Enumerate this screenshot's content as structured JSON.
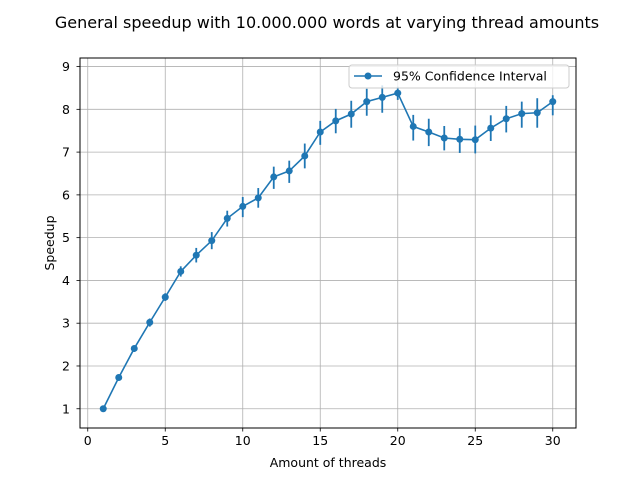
{
  "chart_data": {
    "type": "line",
    "title": "General speedup with 10.000.000 words at varying thread amounts",
    "xlabel": "Amount of threads",
    "ylabel": "Speedup",
    "xlim": [
      -0.5,
      31.5
    ],
    "ylim": [
      0.55,
      9.2
    ],
    "xticks": [
      0,
      5,
      10,
      15,
      20,
      25,
      30
    ],
    "yticks": [
      1,
      2,
      3,
      4,
      5,
      6,
      7,
      8,
      9
    ],
    "grid": true,
    "legend_position": "top-right",
    "series": [
      {
        "name": "95% Confidence Interval",
        "color": "#1f77b4",
        "x": [
          1,
          2,
          3,
          4,
          5,
          6,
          7,
          8,
          9,
          10,
          11,
          12,
          13,
          14,
          15,
          16,
          17,
          18,
          19,
          20,
          21,
          22,
          23,
          24,
          25,
          26,
          27,
          28,
          29,
          30
        ],
        "y": [
          1.0,
          1.73,
          2.41,
          3.02,
          3.61,
          4.21,
          4.59,
          4.93,
          5.45,
          5.73,
          5.93,
          6.42,
          6.56,
          6.91,
          7.47,
          7.73,
          7.89,
          8.18,
          8.28,
          8.38,
          7.6,
          7.47,
          7.33,
          7.3,
          7.29,
          7.56,
          7.78,
          7.9,
          7.92,
          8.18
        ],
        "ci_low": [
          1.0,
          1.69,
          2.33,
          2.92,
          3.52,
          4.09,
          4.42,
          4.73,
          5.26,
          5.48,
          5.7,
          6.14,
          6.28,
          6.62,
          7.17,
          7.44,
          7.57,
          7.85,
          7.92,
          8.22,
          7.27,
          7.14,
          7.04,
          6.98,
          6.97,
          7.26,
          7.46,
          7.57,
          7.57,
          7.86
        ],
        "ci_high": [
          1.0,
          1.77,
          2.48,
          3.11,
          3.7,
          4.33,
          4.76,
          5.13,
          5.63,
          5.95,
          6.16,
          6.66,
          6.8,
          7.2,
          7.73,
          8.01,
          8.2,
          8.48,
          8.56,
          8.53,
          7.87,
          7.78,
          7.61,
          7.56,
          7.62,
          7.86,
          8.08,
          8.18,
          8.26,
          8.33
        ]
      }
    ]
  }
}
